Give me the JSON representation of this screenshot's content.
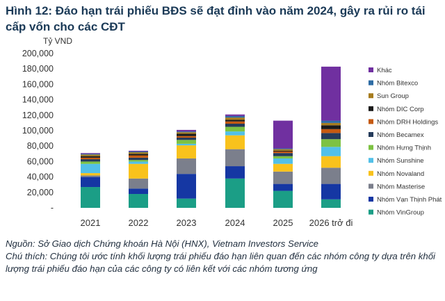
{
  "figure": {
    "title": "Hình 12: Đáo hạn trái phiếu BĐS sẽ đạt đỉnh vào năm 2024, gây ra rủi ro tái cấp vốn cho các CĐT",
    "source": "Nguồn: Sở Giao dịch Chứng khoán Hà Nội (HNX), Vietnam Investors Service",
    "note": "Chú thích: Chúng tôi ước tính khối lượng trái phiếu đáo hạn liên quan đến các nhóm công ty dựa trên khối lượng trái phiếu đáo hạn của các công ty có liên kết với các nhóm tương ứng"
  },
  "chart_data": {
    "type": "bar",
    "stacked": true,
    "ylabel": "Tỷ VND",
    "ylim": [
      0,
      200000
    ],
    "yticks": [
      "-",
      "20,000",
      "40,000",
      "60,000",
      "80,000",
      "100,000",
      "120,000",
      "140,000",
      "160,000",
      "180,000",
      "200,000"
    ],
    "categories": [
      "2021",
      "2022",
      "2023",
      "2024",
      "2025",
      "2026 trở đi"
    ],
    "legend_position": "right",
    "grid": false,
    "series": [
      {
        "name": "Nhóm VinGroup",
        "color": "#1b9e86",
        "values": [
          27000,
          18000,
          12000,
          38000,
          22000,
          11000
        ]
      },
      {
        "name": "Nhóm Vạn Thịnh Phát",
        "color": "#1537a3",
        "values": [
          13000,
          7000,
          32000,
          16000,
          9000,
          20000
        ]
      },
      {
        "name": "Nhóm Masterise",
        "color": "#7b7f8c",
        "values": [
          2000,
          13000,
          20000,
          22000,
          16000,
          21000
        ]
      },
      {
        "name": "Nhóm Novaland",
        "color": "#f9c21c",
        "values": [
          3000,
          19000,
          17000,
          18000,
          10000,
          15000
        ]
      },
      {
        "name": "Nhóm Sunshine",
        "color": "#52c0e8",
        "values": [
          12000,
          3000,
          2000,
          5000,
          7000,
          12000
        ]
      },
      {
        "name": "Nhóm Hưng Thịnh",
        "color": "#7dc242",
        "values": [
          3000,
          2000,
          5000,
          6000,
          3000,
          10000
        ]
      },
      {
        "name": "Nhóm Becamex",
        "color": "#253b5b",
        "values": [
          3000,
          3000,
          3000,
          4000,
          4000,
          8000
        ]
      },
      {
        "name": "Nhóm DRH Holdings",
        "color": "#c55a11",
        "values": [
          2000,
          3000,
          2000,
          3000,
          2000,
          5000
        ]
      },
      {
        "name": "Nhóm DIC Corp",
        "color": "#1a1a1a",
        "values": [
          2000,
          2000,
          3000,
          2000,
          1000,
          5000
        ]
      },
      {
        "name": "Sun Group",
        "color": "#a67c1e",
        "values": [
          2000,
          2000,
          2000,
          3000,
          2000,
          3000
        ]
      },
      {
        "name": "Nhóm Bitexco",
        "color": "#2e6ca4",
        "values": [
          1000,
          1000,
          1000,
          2000,
          1000,
          3000
        ]
      },
      {
        "name": "Khác",
        "color": "#7030a0",
        "values": [
          1000,
          1000,
          2000,
          2000,
          36000,
          70000
        ]
      }
    ]
  }
}
